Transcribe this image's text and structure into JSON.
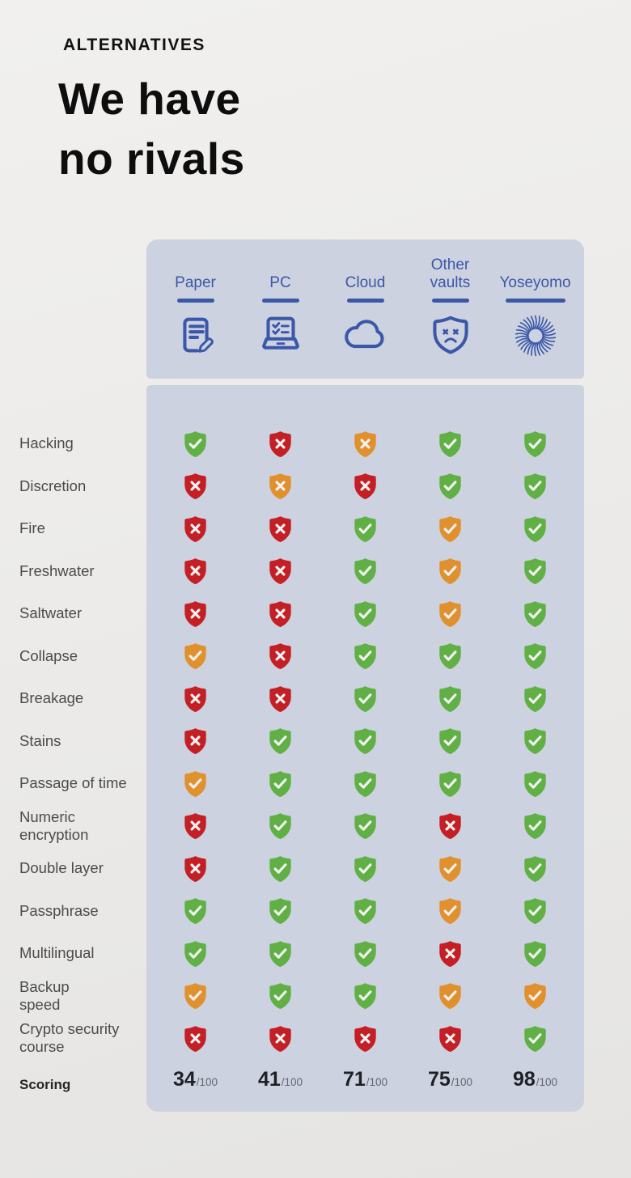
{
  "header": {
    "kicker": "ALTERNATIVES",
    "title_line1": "We have",
    "title_line2": "no rivals"
  },
  "table": {
    "columns": [
      {
        "label": "Paper",
        "icon": "paper-document-icon"
      },
      {
        "label": "PC",
        "icon": "pc-laptop-icon"
      },
      {
        "label": "Cloud",
        "icon": "cloud-icon"
      },
      {
        "label": "Other vaults",
        "icon": "sad-shield-icon"
      },
      {
        "label": "Yoseyomo",
        "icon": "yoseyomo-swirl-logo-icon"
      }
    ],
    "rows": [
      {
        "label": "Hacking",
        "cells": [
          "yes",
          "no",
          "partial-no",
          "yes",
          "yes"
        ]
      },
      {
        "label": "Discretion",
        "cells": [
          "no",
          "partial-no",
          "no",
          "yes",
          "yes"
        ]
      },
      {
        "label": "Fire",
        "cells": [
          "no",
          "no",
          "yes",
          "partial-yes",
          "yes"
        ]
      },
      {
        "label": "Freshwater",
        "cells": [
          "no",
          "no",
          "yes",
          "partial-yes",
          "yes"
        ]
      },
      {
        "label": "Saltwater",
        "cells": [
          "no",
          "no",
          "yes",
          "partial-yes",
          "yes"
        ]
      },
      {
        "label": "Collapse",
        "cells": [
          "partial-yes",
          "no",
          "yes",
          "yes",
          "yes"
        ]
      },
      {
        "label": "Breakage",
        "cells": [
          "no",
          "no",
          "yes",
          "yes",
          "yes"
        ]
      },
      {
        "label": "Stains",
        "cells": [
          "no",
          "yes",
          "yes",
          "yes",
          "yes"
        ]
      },
      {
        "label": "Passage of time",
        "cells": [
          "partial-yes",
          "yes",
          "yes",
          "yes",
          "yes"
        ]
      },
      {
        "label": "Numeric\nencryption",
        "cells": [
          "no",
          "yes",
          "yes",
          "no",
          "yes"
        ]
      },
      {
        "label": "Double layer",
        "cells": [
          "no",
          "yes",
          "yes",
          "partial-yes",
          "yes"
        ]
      },
      {
        "label": "Passphrase",
        "cells": [
          "yes",
          "yes",
          "yes",
          "partial-yes",
          "yes"
        ]
      },
      {
        "label": "Multilingual",
        "cells": [
          "yes",
          "yes",
          "yes",
          "no",
          "yes"
        ]
      },
      {
        "label": "Backup\nspeed",
        "cells": [
          "partial-yes",
          "yes",
          "yes",
          "partial-yes",
          "partial-yes"
        ]
      },
      {
        "label": "Crypto security\ncourse",
        "cells": [
          "no",
          "no",
          "no",
          "no",
          "yes"
        ]
      }
    ],
    "scoring": {
      "label": "Scoring",
      "denominator": "/100",
      "scores": [
        "34",
        "41",
        "71",
        "75",
        "98"
      ]
    }
  },
  "colors": {
    "green": "#61b046",
    "red": "#c41f25",
    "orange": "#e1902e",
    "blue": "#3b57a8",
    "panel_bg": "#cdd2e0",
    "page_bg": "#ebeae8",
    "label_text": "#4b4b4b",
    "title_text": "#0d0d0d",
    "score_text": "#1d2026",
    "score_denominator_text": "#62666f"
  }
}
